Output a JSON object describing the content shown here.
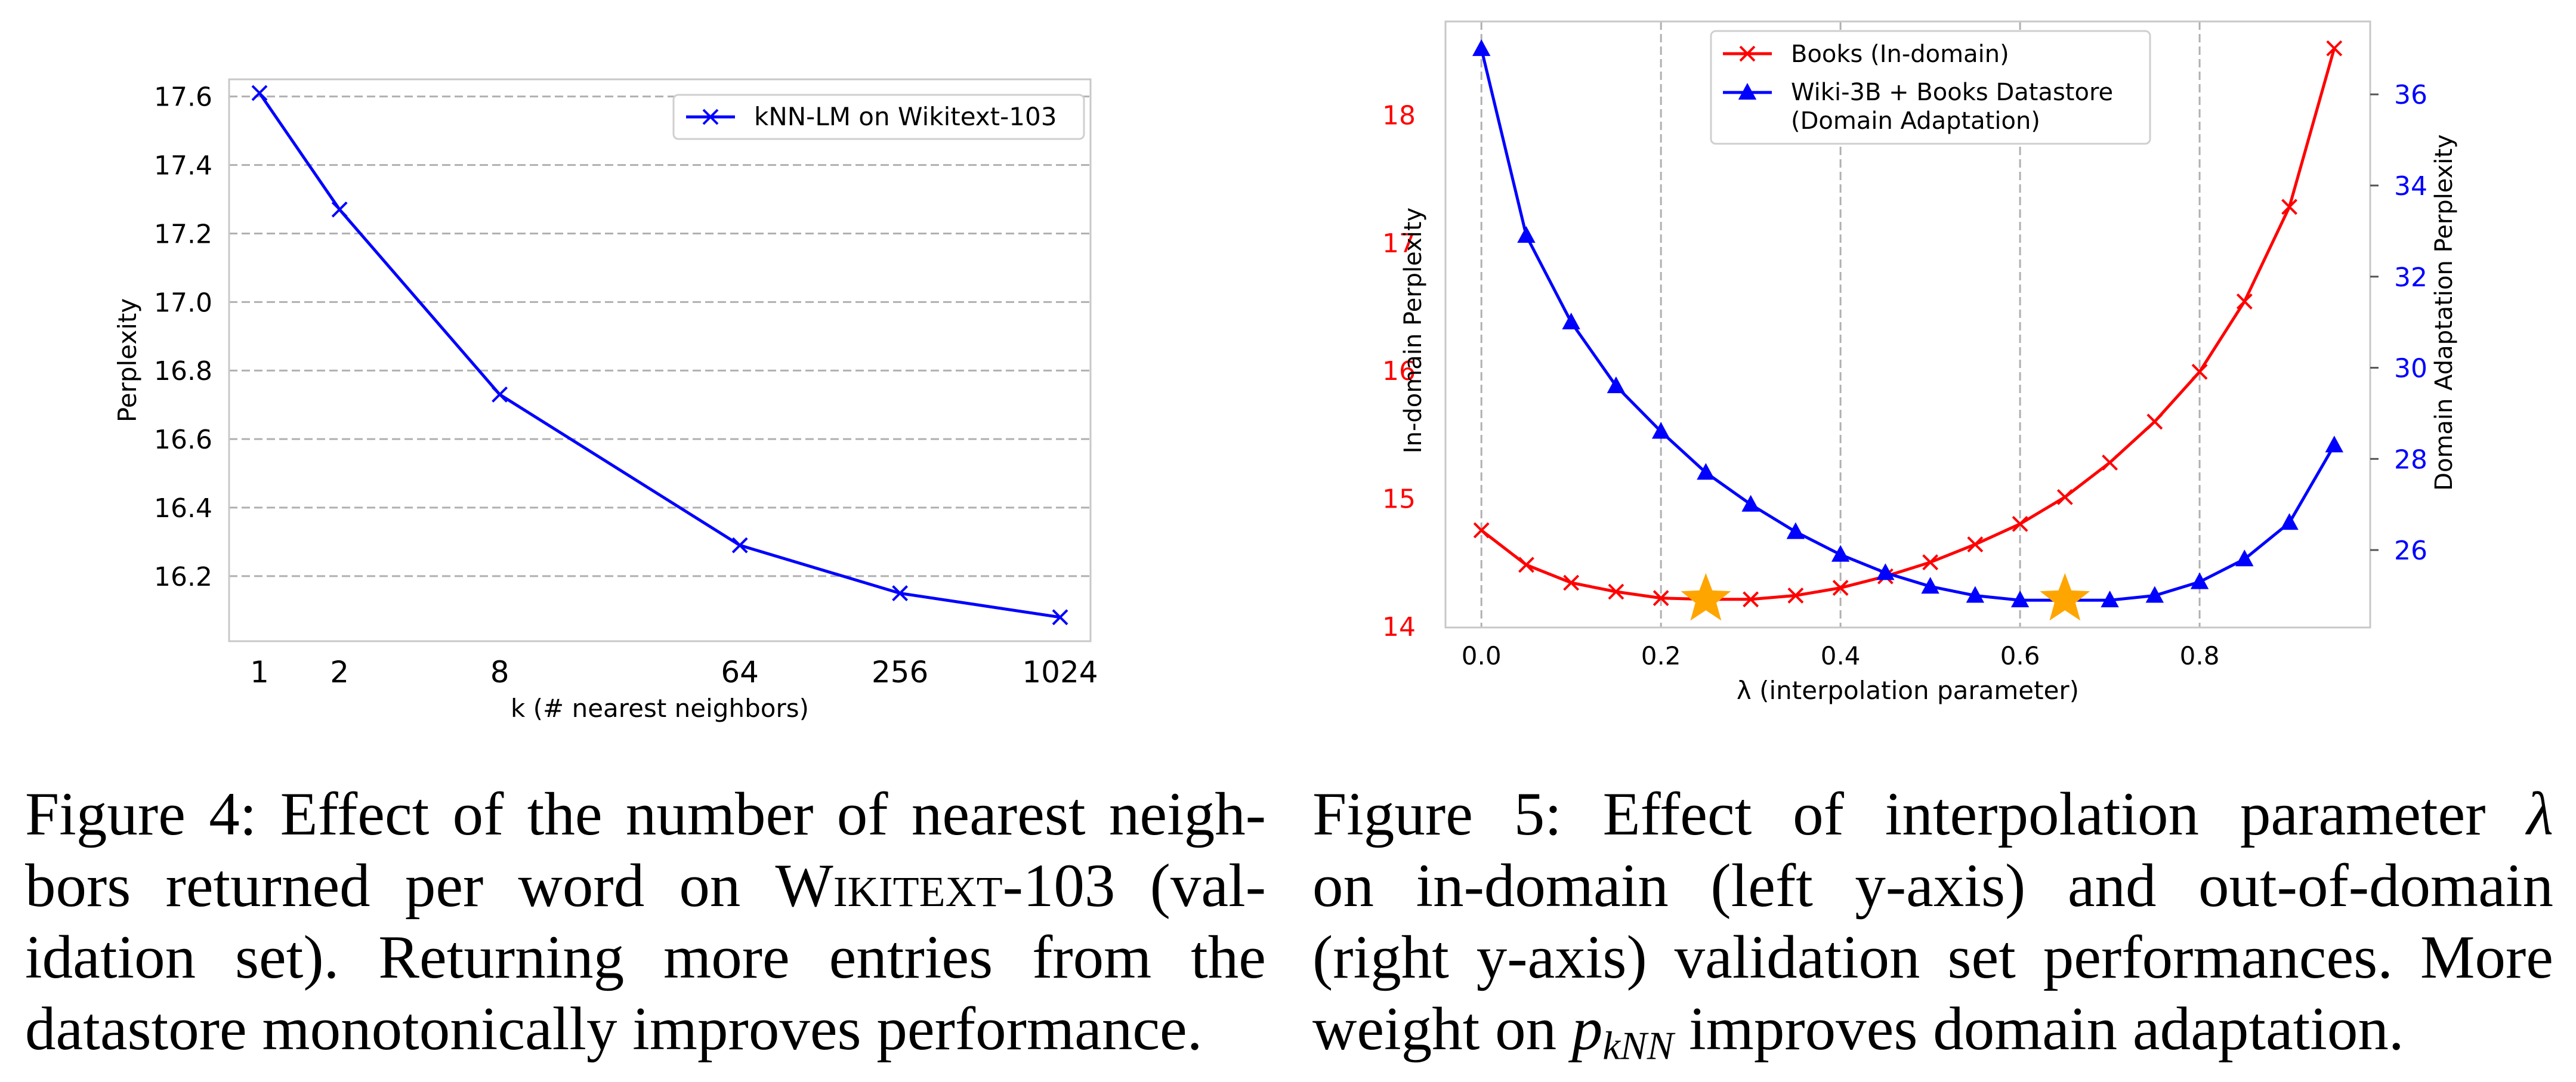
{
  "chart_data": [
    {
      "type": "line",
      "x_scale": "log2",
      "x": [
        1,
        2,
        8,
        64,
        256,
        1024
      ],
      "xticks": [
        "1",
        "2",
        "8",
        "64",
        "256",
        "1024"
      ],
      "xlabel": "k (# nearest neighbors)",
      "ylabel": "Perplexity",
      "ylim": [
        16.01,
        17.65
      ],
      "yticks": [
        "16.2",
        "16.4",
        "16.6",
        "16.8",
        "17.0",
        "17.2",
        "17.4",
        "17.6"
      ],
      "grid": "horizontal dashed",
      "legend_position": "top-right",
      "series": [
        {
          "name": "kNN-LM on Wikitext-103",
          "color": "#0000ff",
          "marker": "x",
          "values": [
            17.61,
            17.27,
            16.73,
            16.29,
            16.15,
            16.08
          ]
        }
      ]
    },
    {
      "type": "line",
      "x": [
        0.0,
        0.05,
        0.1,
        0.15,
        0.2,
        0.25,
        0.3,
        0.35,
        0.4,
        0.45,
        0.5,
        0.55,
        0.6,
        0.65,
        0.7,
        0.75,
        0.8,
        0.85,
        0.9,
        0.95
      ],
      "xticks": [
        "0.0",
        "0.2",
        "0.4",
        "0.6",
        "0.8"
      ],
      "xlabel": "λ (interpolation parameter)",
      "xlim": [
        -0.04,
        0.99
      ],
      "ylabel_left": "In-domain Perplexity",
      "ylabel_right": "Domain Adaptation Perplexity",
      "ylim_left": [
        13.99,
        18.73
      ],
      "ylim_right": [
        24.3,
        37.6
      ],
      "yticks_left": [
        "14",
        "15",
        "16",
        "17",
        "18"
      ],
      "yticks_right": [
        "26",
        "28",
        "30",
        "32",
        "34",
        "36"
      ],
      "left_axis_color": "#ff0000",
      "right_axis_color": "#0000ff",
      "grid": "vertical dashed",
      "legend_position": "top-center",
      "series": [
        {
          "name": "Books (In-domain)",
          "axis": "left",
          "color": "#ff0000",
          "marker": "x",
          "values": [
            14.75,
            14.48,
            14.34,
            14.27,
            14.22,
            14.21,
            14.21,
            14.24,
            14.3,
            14.39,
            14.5,
            14.64,
            14.8,
            15.01,
            15.28,
            15.6,
            15.99,
            16.54,
            17.28,
            18.52
          ]
        },
        {
          "name_lines": [
            "Wiki-3B + Books Datastore",
            "(Domain Adaptation)"
          ],
          "axis": "right",
          "color": "#0000ff",
          "marker": "triangle",
          "values": [
            37.0,
            32.9,
            31.0,
            29.6,
            28.6,
            27.7,
            27.0,
            26.4,
            25.9,
            25.5,
            25.2,
            25.0,
            24.9,
            24.9,
            24.9,
            25.0,
            25.3,
            25.8,
            26.6,
            28.3
          ]
        }
      ],
      "star_markers": {
        "color": "#ffa500",
        "points": [
          {
            "x": 0.25,
            "y": 14.21
          },
          {
            "x": 0.65,
            "y": 14.21
          }
        ]
      }
    }
  ],
  "captions": {
    "fig4": {
      "lines": [
        [
          "Figure 4: Effect of the number of nearest neigh-"
        ],
        [
          "bors returned per word on ",
          "Wikitext",
          "-103 (val-"
        ],
        [
          "idation set).  Returning more entries from the"
        ],
        [
          "datastore monotonically improves performance."
        ]
      ]
    },
    "fig5": {
      "line1": "Figure 5:  Effect of interpolation parameter ",
      "lambda": "λ",
      "line2": "on in-domain (left y-axis) and out-of-domain",
      "line3": "(right y-axis) validation set performances. More",
      "line4_pre": "weight on ",
      "p": "p",
      "p_sub": "kNN",
      "line4_post": " improves domain adaptation."
    }
  }
}
